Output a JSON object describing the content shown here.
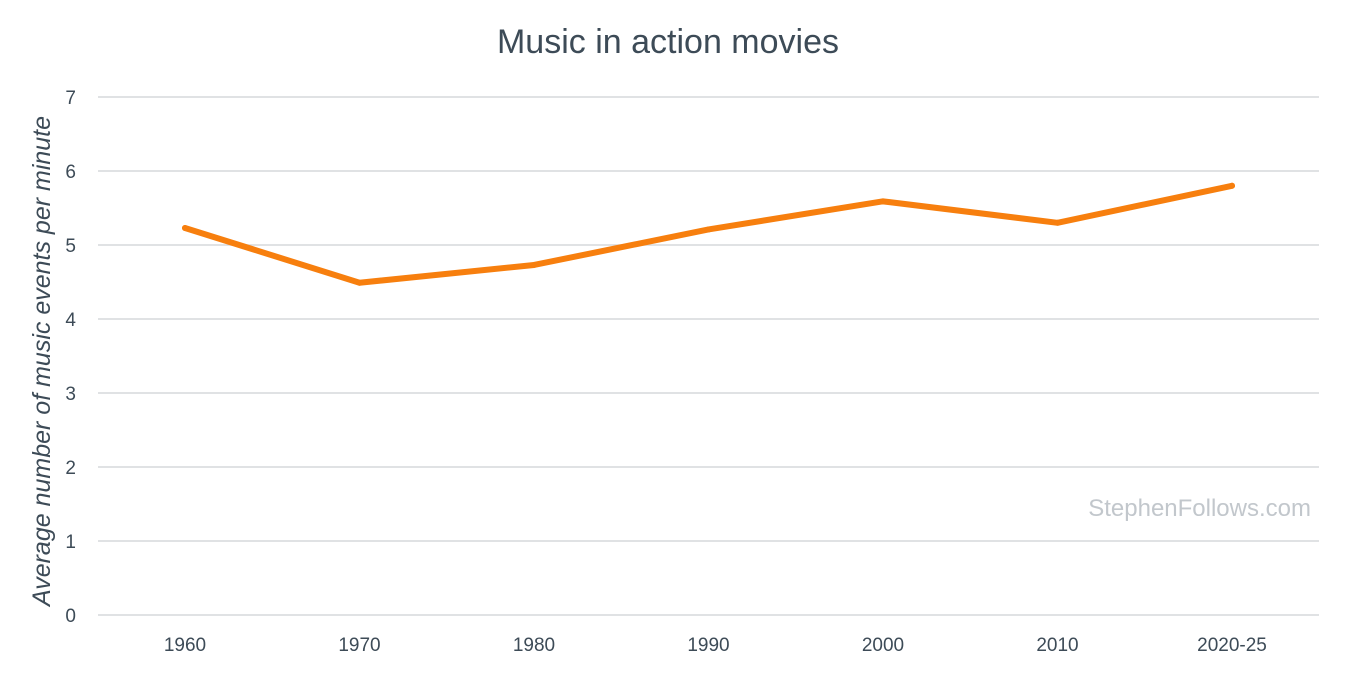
{
  "chart_data": {
    "type": "line",
    "title": "Music in action movies",
    "xlabel": "",
    "ylabel": "Average number of music events per minute",
    "categories": [
      "1960",
      "1970",
      "1980",
      "1990",
      "2000",
      "2010",
      "2020-25"
    ],
    "series": [
      {
        "values": [
          5.23,
          4.49,
          4.73,
          5.21,
          5.59,
          5.3,
          5.8
        ]
      }
    ],
    "ylim": [
      0,
      7
    ],
    "yticks": [
      "0",
      "1",
      "2",
      "3",
      "4",
      "5",
      "6",
      "7"
    ],
    "grid": true,
    "legend": "none"
  },
  "watermark": "StephenFollows.com",
  "colors": {
    "line": "#f77f0e",
    "text": "#3d4b57",
    "grid": "#d6d9dc",
    "watermark": "#c2c7cc"
  }
}
